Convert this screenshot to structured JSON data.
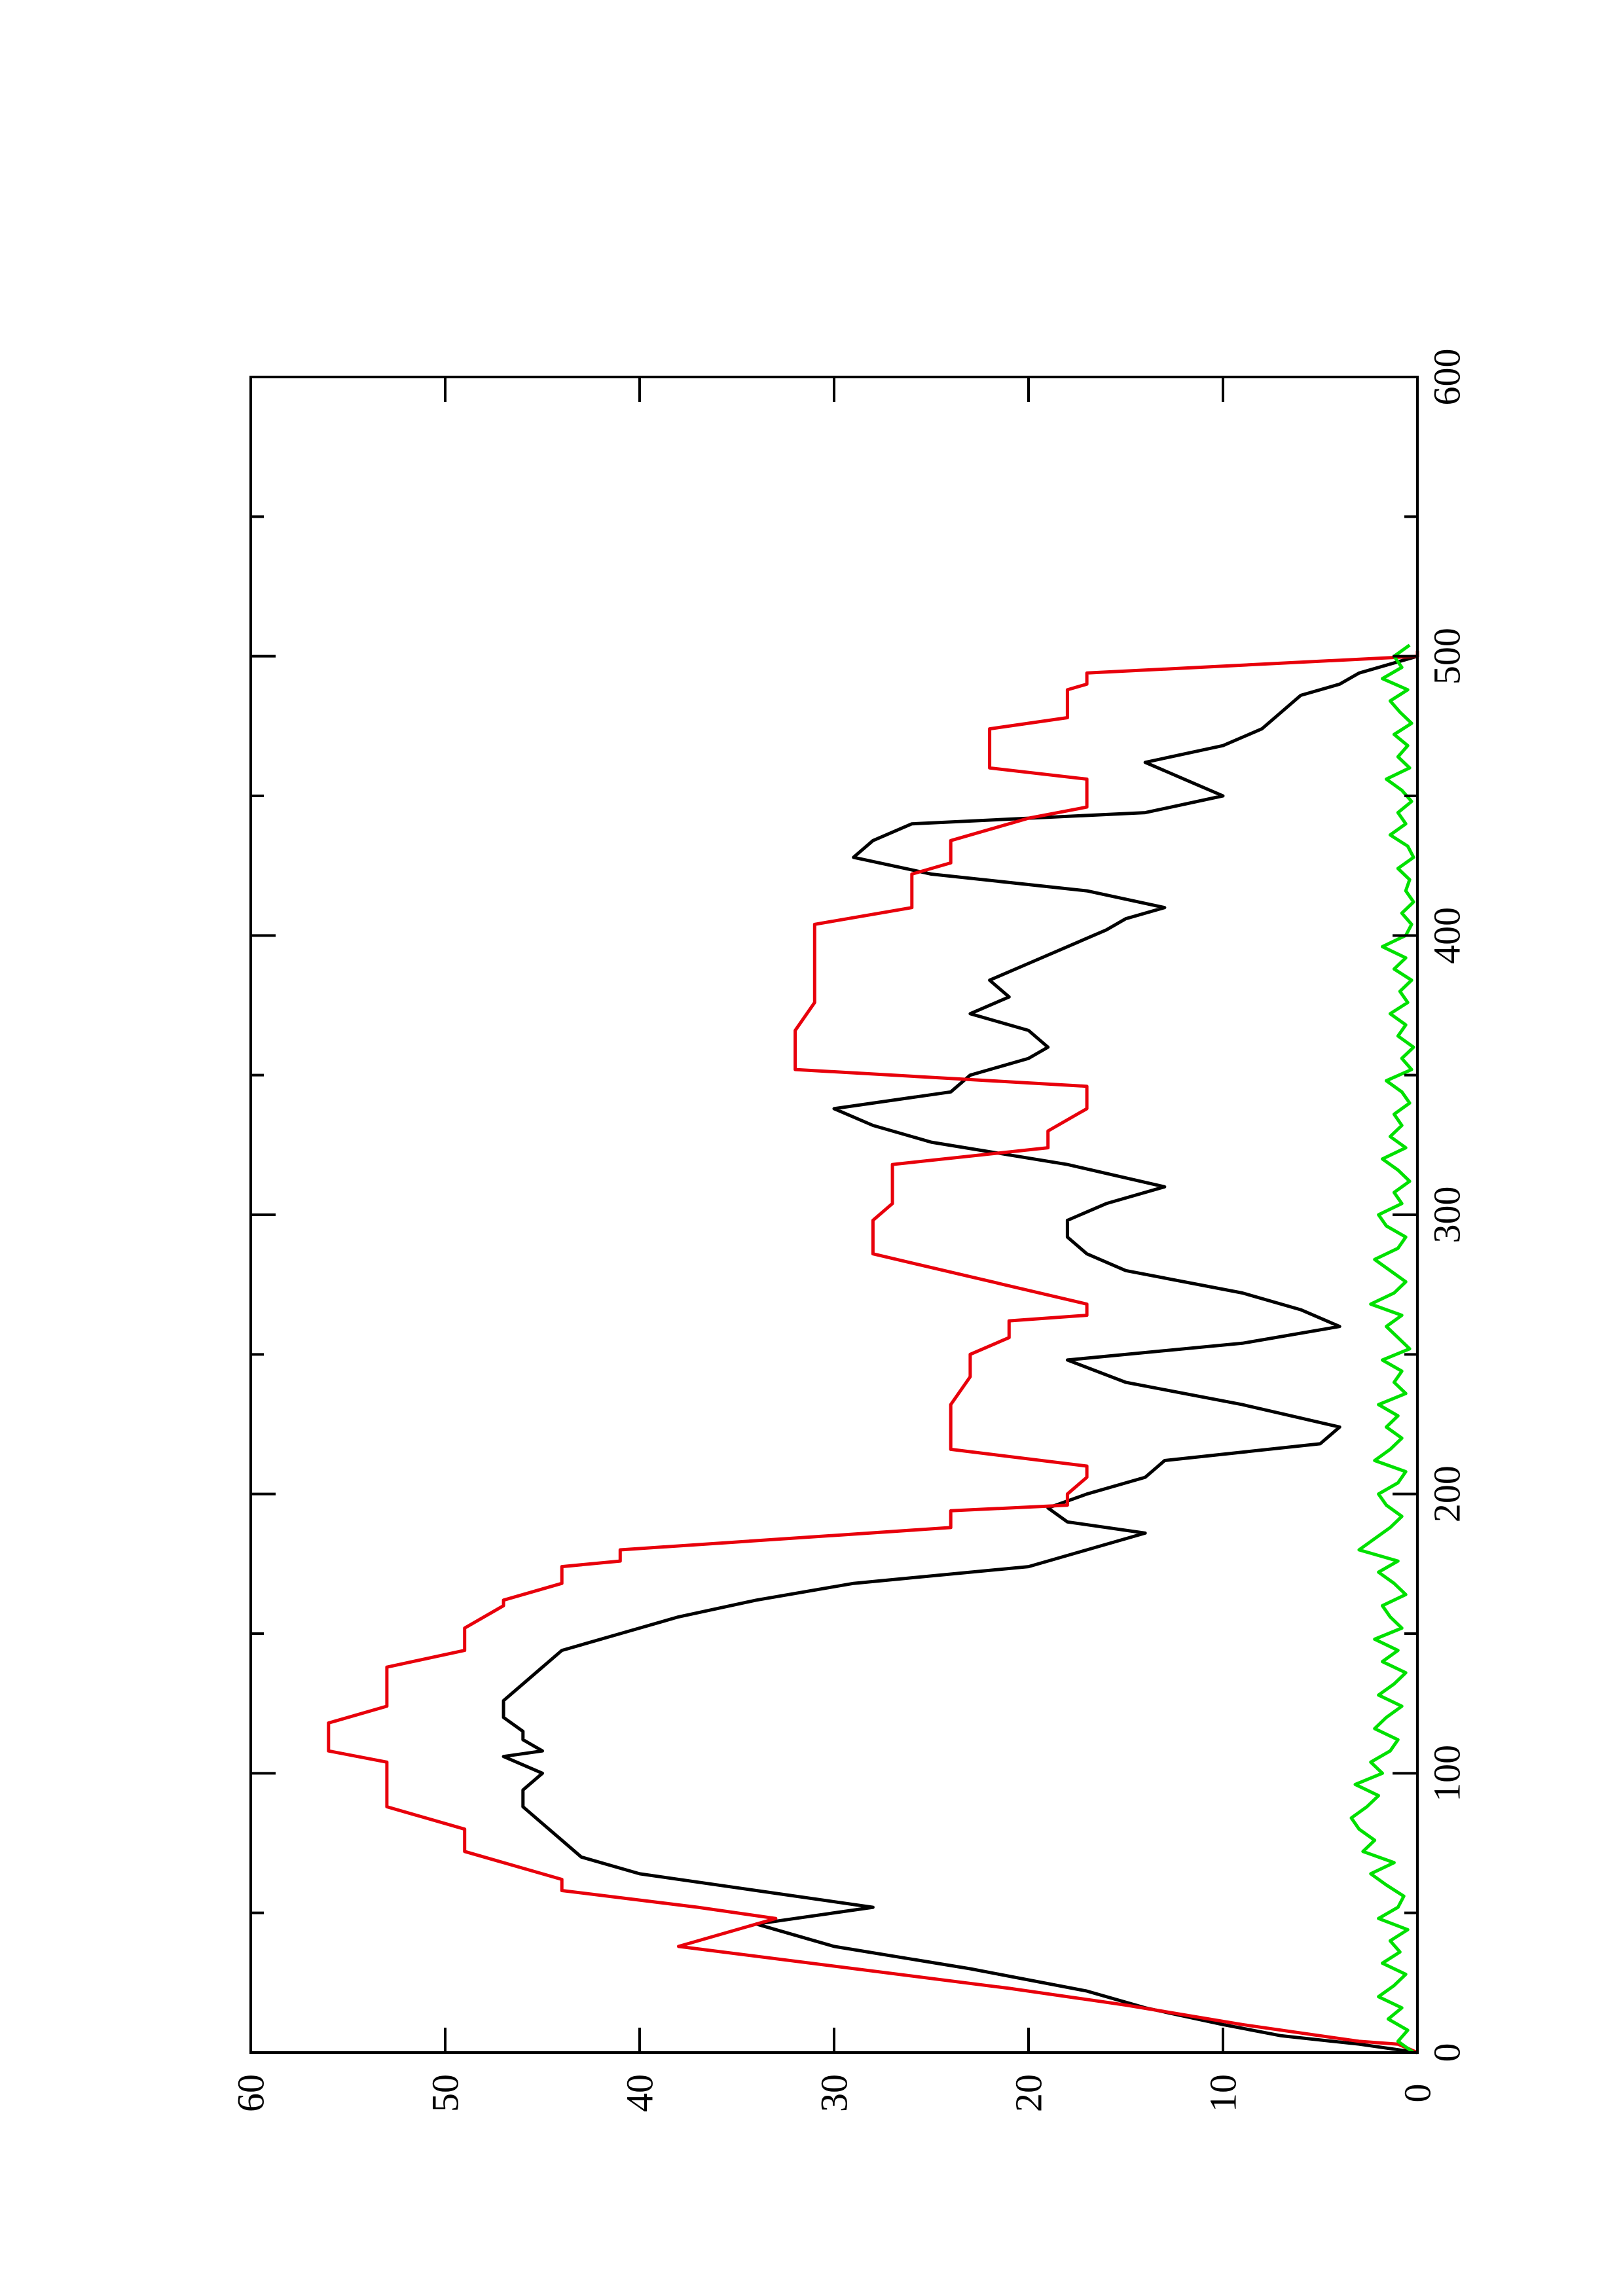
{
  "chart_data": {
    "type": "line",
    "orientation": "rotated 90 degrees counter-clockwise (x axis vertical, increasing upward)",
    "title": "",
    "xlabel": "",
    "ylabel": "",
    "xlim": [
      0,
      600
    ],
    "ylim": [
      0,
      60
    ],
    "x_ticks": [
      0,
      100,
      200,
      300,
      400,
      500,
      600
    ],
    "y_ticks": [
      0,
      10,
      20,
      30,
      40,
      50,
      60
    ],
    "grid": false,
    "legend": "none",
    "series": [
      {
        "color": "#000000",
        "x": [
          0,
          3,
          6,
          10,
          16,
          22,
          30,
          38,
          46,
          52,
          58,
          64,
          70,
          76,
          82,
          88,
          94,
          100,
          106,
          108,
          112,
          115,
          120,
          126,
          132,
          138,
          144,
          150,
          156,
          162,
          168,
          174,
          180,
          186,
          190,
          195,
          200,
          206,
          212,
          218,
          224,
          232,
          240,
          248,
          254,
          260,
          266,
          272,
          280,
          286,
          292,
          298,
          304,
          310,
          318,
          326,
          332,
          338,
          344,
          350,
          356,
          360,
          366,
          372,
          378,
          384,
          390,
          396,
          402,
          406,
          410,
          416,
          422,
          428,
          434,
          440,
          444,
          450,
          456,
          462,
          468,
          474,
          480,
          486,
          490,
          494,
          498,
          500,
          502
        ],
        "y": [
          0,
          3,
          7,
          10,
          14,
          17,
          23,
          30,
          34,
          28,
          34,
          40,
          43,
          44,
          45,
          46,
          46,
          45,
          47,
          45,
          46,
          46,
          47,
          47,
          46,
          45,
          44,
          41,
          38,
          34,
          29,
          20,
          17,
          14,
          18,
          19,
          17,
          14,
          13,
          5,
          4,
          9,
          15,
          18,
          9,
          4,
          6,
          9,
          15,
          17,
          18,
          18,
          16,
          13,
          18,
          25,
          28,
          30,
          24,
          23,
          20,
          19,
          20,
          23,
          21,
          22,
          20,
          18,
          16,
          15,
          13,
          17,
          25,
          29,
          28,
          26,
          14,
          10,
          12,
          14,
          10,
          8,
          7,
          6,
          4,
          3,
          1,
          0,
          0
        ]
      },
      {
        "color": "#e8000b",
        "x": [
          0,
          3,
          4,
          10,
          17,
          23,
          38,
          48,
          52,
          58,
          61,
          62,
          68,
          72,
          78,
          80,
          88,
          92,
          96,
          98,
          104,
          108,
          110,
          118,
          124,
          132,
          138,
          144,
          152,
          160,
          162,
          168,
          174,
          176,
          180,
          188,
          194,
          196,
          200,
          206,
          210,
          216,
          222,
          226,
          232,
          242,
          250,
          256,
          262,
          264,
          268,
          286,
          290,
          298,
          304,
          310,
          318,
          324,
          330,
          338,
          346,
          352,
          358,
          360,
          366,
          376,
          378,
          384,
          390,
          394,
          404,
          410,
          412,
          418,
          422,
          426,
          428,
          434,
          442,
          446,
          452,
          456,
          460,
          464,
          468,
          474,
          478,
          482,
          488,
          490,
          494,
          500,
          502
        ],
        "y": [
          0,
          1,
          3,
          9,
          15,
          21,
          38,
          33,
          37,
          44,
          44,
          44,
          47,
          49,
          49,
          49,
          53,
          53,
          53,
          53,
          53,
          56,
          56,
          56,
          53,
          53,
          53,
          49,
          49,
          47,
          47,
          44,
          44,
          41,
          41,
          24,
          24,
          18,
          18,
          17,
          17,
          24,
          24,
          24,
          24,
          23,
          23,
          21,
          21,
          17,
          17,
          28,
          28,
          28,
          27,
          27,
          27,
          19,
          19,
          17,
          17,
          32,
          32,
          32,
          32,
          31,
          31,
          31,
          31,
          31,
          31,
          26,
          26,
          26,
          26,
          24,
          24,
          24,
          20,
          17,
          17,
          17,
          22,
          22,
          22,
          22,
          18,
          18,
          18,
          17,
          17,
          0,
          0
        ]
      },
      {
        "color": "#00e000",
        "x": [
          0,
          4,
          8,
          12,
          16,
          20,
          24,
          28,
          32,
          36,
          40,
          44,
          48,
          52,
          56,
          60,
          64,
          68,
          72,
          76,
          80,
          84,
          88,
          92,
          96,
          100,
          104,
          108,
          112,
          116,
          120,
          124,
          128,
          132,
          136,
          140,
          144,
          148,
          152,
          156,
          160,
          164,
          168,
          172,
          176,
          180,
          184,
          188,
          192,
          196,
          200,
          204,
          208,
          212,
          216,
          220,
          224,
          228,
          232,
          236,
          240,
          244,
          248,
          252,
          256,
          260,
          264,
          268,
          272,
          276,
          280,
          284,
          288,
          292,
          296,
          300,
          304,
          308,
          312,
          316,
          320,
          324,
          328,
          332,
          336,
          340,
          344,
          348,
          352,
          356,
          360,
          364,
          368,
          372,
          376,
          380,
          384,
          388,
          392,
          396,
          400,
          404,
          408,
          412,
          416,
          420,
          424,
          428,
          432,
          436,
          440,
          444,
          448,
          452,
          456,
          460,
          464,
          468,
          472,
          476,
          480,
          484,
          488,
          492,
          496,
          500,
          504
        ],
        "y": [
          0.2,
          1.0,
          0.5,
          1.5,
          0.8,
          2.0,
          1.2,
          0.6,
          1.8,
          0.9,
          1.4,
          0.5,
          2.0,
          1.0,
          0.7,
          1.6,
          2.4,
          1.2,
          2.8,
          2.2,
          3.0,
          3.4,
          2.6,
          2.0,
          3.2,
          1.8,
          2.4,
          1.4,
          1.0,
          2.2,
          1.6,
          0.8,
          2.0,
          1.2,
          0.6,
          1.8,
          1.0,
          2.2,
          0.8,
          1.4,
          1.8,
          0.6,
          1.2,
          2.0,
          1.0,
          3.0,
          2.2,
          1.4,
          0.8,
          1.6,
          2.0,
          1.0,
          0.6,
          2.2,
          1.4,
          0.8,
          1.6,
          1.0,
          2.0,
          0.6,
          1.2,
          0.8,
          1.8,
          0.4,
          1.0,
          1.6,
          0.8,
          2.4,
          1.2,
          0.6,
          1.4,
          2.2,
          1.0,
          0.6,
          1.6,
          2.0,
          0.8,
          1.2,
          0.4,
          1.0,
          1.8,
          0.6,
          1.4,
          0.8,
          1.2,
          0.4,
          0.8,
          1.6,
          0.3,
          0.8,
          0.2,
          1.0,
          0.6,
          1.4,
          0.5,
          0.9,
          0.3,
          1.2,
          0.6,
          1.8,
          0.6,
          0.3,
          0.8,
          0.2,
          0.6,
          0.4,
          1.0,
          0.2,
          0.5,
          1.4,
          0.6,
          1.0,
          0.3,
          0.8,
          1.6,
          0.4,
          1.0,
          0.5,
          1.2,
          0.3,
          0.9,
          1.4,
          0.5,
          1.8,
          0.8,
          1.2,
          0.4
        ]
      }
    ]
  }
}
